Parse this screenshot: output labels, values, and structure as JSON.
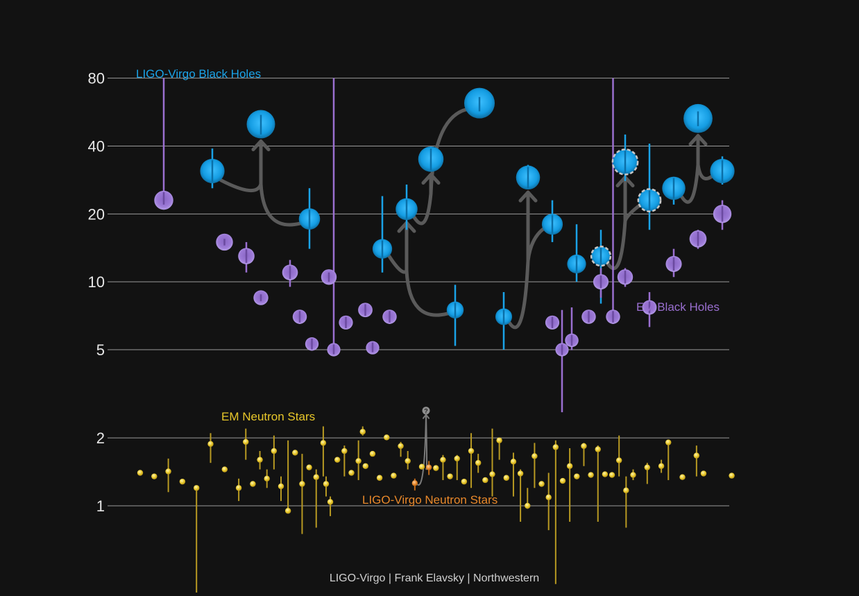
{
  "chart_data": {
    "type": "scatter",
    "yscale": "log",
    "yticks": [
      1,
      2,
      5,
      10,
      20,
      40,
      80
    ],
    "grid": true,
    "credit": "LIGO-Virgo | Frank Elavsky | Northwestern",
    "colors": {
      "ligo_bh": "#1aa3e8",
      "em_bh": "#9a6fd0",
      "em_ns": "#e8c72a",
      "ligo_ns": "#e8882a",
      "arrow": "#5a5a5a"
    },
    "series": [
      {
        "name": "LIGO-Virgo Black Holes",
        "points": [
          {
            "x": 3,
            "y": 31,
            "lo": 26,
            "hi": 39
          },
          {
            "x": 5,
            "y": 50,
            "lo": 45,
            "hi": 55
          },
          {
            "x": 7,
            "y": 19,
            "lo": 14,
            "hi": 26
          },
          {
            "x": 10,
            "y": 14,
            "lo": 11,
            "hi": 24
          },
          {
            "x": 11,
            "y": 21,
            "lo": 17,
            "hi": 27
          },
          {
            "x": 12,
            "y": 35,
            "lo": 31,
            "hi": 39
          },
          {
            "x": 13,
            "y": 7.5,
            "lo": 5.2,
            "hi": 9.7
          },
          {
            "x": 14,
            "y": 62,
            "lo": 57,
            "hi": 66
          },
          {
            "x": 15,
            "y": 7,
            "lo": 5,
            "hi": 9
          },
          {
            "x": 16,
            "y": 29,
            "lo": 26,
            "hi": 33
          },
          {
            "x": 17,
            "y": 18,
            "lo": 15,
            "hi": 23
          },
          {
            "x": 18,
            "y": 12,
            "lo": 10,
            "hi": 18
          },
          {
            "x": 19,
            "y": 13,
            "lo": 8,
            "hi": 17,
            "dashed": true
          },
          {
            "x": 20,
            "y": 34,
            "lo": 28,
            "hi": 45,
            "dashed": true
          },
          {
            "x": 21,
            "y": 23,
            "lo": 17,
            "hi": 41,
            "dashed": true
          },
          {
            "x": 22,
            "y": 26,
            "lo": 22,
            "hi": 29
          },
          {
            "x": 23,
            "y": 53,
            "lo": 49,
            "hi": 57
          },
          {
            "x": 24,
            "y": 31,
            "lo": 27,
            "hi": 36
          }
        ]
      },
      {
        "name": "EM Black Holes",
        "points": [
          {
            "x": 1,
            "y": 23,
            "lo": 22,
            "hi": 80
          },
          {
            "x": 3.5,
            "y": 15,
            "lo": 14.5,
            "hi": 15.5
          },
          {
            "x": 4.4,
            "y": 13,
            "lo": 11,
            "hi": 15
          },
          {
            "x": 5,
            "y": 8.5,
            "lo": 8.2,
            "hi": 8.8
          },
          {
            "x": 6.2,
            "y": 11,
            "lo": 9.5,
            "hi": 12.5
          },
          {
            "x": 6.6,
            "y": 7,
            "lo": 6.5,
            "hi": 7.5
          },
          {
            "x": 7.1,
            "y": 5.3,
            "lo": 5,
            "hi": 5.6
          },
          {
            "x": 7.8,
            "y": 10.5,
            "lo": 10,
            "hi": 11
          },
          {
            "x": 8,
            "y": 5,
            "lo": 4.7,
            "hi": 80
          },
          {
            "x": 8.5,
            "y": 6.6,
            "lo": 6.2,
            "hi": 7
          },
          {
            "x": 9.3,
            "y": 7.5,
            "lo": 7,
            "hi": 8
          },
          {
            "x": 9.6,
            "y": 5.1,
            "lo": 4.8,
            "hi": 5.4
          },
          {
            "x": 10.3,
            "y": 7,
            "lo": 6.5,
            "hi": 7.5
          },
          {
            "x": 17,
            "y": 6.6,
            "lo": 6.2,
            "hi": 7
          },
          {
            "x": 17.4,
            "y": 5,
            "lo": 2.6,
            "hi": 7.5
          },
          {
            "x": 17.8,
            "y": 5.5,
            "lo": 4.9,
            "hi": 7.7
          },
          {
            "x": 18.5,
            "y": 7,
            "lo": 6.6,
            "hi": 7.5
          },
          {
            "x": 19,
            "y": 10,
            "lo": 8.5,
            "hi": 11.5
          },
          {
            "x": 19.5,
            "y": 7,
            "lo": 6.5,
            "hi": 80
          },
          {
            "x": 20,
            "y": 10.5,
            "lo": 9.5,
            "hi": 11.5
          },
          {
            "x": 21,
            "y": 7.7,
            "lo": 6.3,
            "hi": 9
          },
          {
            "x": 22,
            "y": 12,
            "lo": 10.5,
            "hi": 14
          },
          {
            "x": 23,
            "y": 15.5,
            "lo": 14,
            "hi": 17
          },
          {
            "x": 24,
            "y": 20,
            "lo": 17,
            "hi": 23
          }
        ]
      },
      {
        "name": "EM Neutron Stars",
        "points": [
          {
            "x": 1.0,
            "y": 1.4
          },
          {
            "x": 1.1,
            "y": 1.35
          },
          {
            "x": 1.2,
            "y": 1.42,
            "lo": 1.15,
            "hi": 1.62
          },
          {
            "x": 1.3,
            "y": 1.28
          },
          {
            "x": 1.4,
            "y": 1.2,
            "lo": 0.4,
            "hi": 1.22
          },
          {
            "x": 1.5,
            "y": 1.88,
            "lo": 1.55,
            "hi": 2.1
          },
          {
            "x": 1.6,
            "y": 1.45
          },
          {
            "x": 1.7,
            "y": 1.2,
            "lo": 1.05,
            "hi": 1.32
          },
          {
            "x": 1.75,
            "y": 1.92,
            "lo": 1.6,
            "hi": 2.2
          },
          {
            "x": 1.8,
            "y": 1.25
          },
          {
            "x": 1.85,
            "y": 1.6,
            "lo": 1.45,
            "hi": 1.75
          },
          {
            "x": 1.9,
            "y": 1.32,
            "lo": 1.2,
            "hi": 1.45
          },
          {
            "x": 1.95,
            "y": 1.75,
            "lo": 1.45,
            "hi": 2.05
          },
          {
            "x": 2.0,
            "y": 1.22,
            "lo": 1.05,
            "hi": 1.35
          },
          {
            "x": 2.05,
            "y": 0.95,
            "lo": 0.93,
            "hi": 1.95
          },
          {
            "x": 2.1,
            "y": 1.72
          },
          {
            "x": 2.15,
            "y": 1.25,
            "lo": 0.75,
            "hi": 1.7
          },
          {
            "x": 2.2,
            "y": 1.48
          },
          {
            "x": 2.25,
            "y": 1.34,
            "lo": 0.8,
            "hi": 1.45
          },
          {
            "x": 2.3,
            "y": 1.9,
            "lo": 1.35,
            "hi": 2.25
          },
          {
            "x": 2.32,
            "y": 1.25,
            "lo": 1.1,
            "hi": 1.35
          },
          {
            "x": 2.35,
            "y": 1.04,
            "lo": 0.9,
            "hi": 1.1
          },
          {
            "x": 2.4,
            "y": 1.6
          },
          {
            "x": 2.45,
            "y": 1.75,
            "lo": 1.35,
            "hi": 1.85
          },
          {
            "x": 2.5,
            "y": 1.4
          },
          {
            "x": 2.55,
            "y": 1.58,
            "lo": 1.3,
            "hi": 1.95
          },
          {
            "x": 2.58,
            "y": 2.13,
            "lo": 2.05,
            "hi": 2.25
          },
          {
            "x": 2.6,
            "y": 1.5
          },
          {
            "x": 2.65,
            "y": 1.7
          },
          {
            "x": 2.7,
            "y": 1.33
          },
          {
            "x": 2.75,
            "y": 2.01
          },
          {
            "x": 2.8,
            "y": 1.36
          },
          {
            "x": 2.85,
            "y": 1.84,
            "lo": 1.65,
            "hi": 1.92
          },
          {
            "x": 2.9,
            "y": 1.58,
            "lo": 1.45,
            "hi": 1.75
          },
          {
            "x": 3.0,
            "y": 1.49
          },
          {
            "x": 3.1,
            "y": 1.47
          },
          {
            "x": 3.15,
            "y": 1.6,
            "lo": 1.3,
            "hi": 1.68
          },
          {
            "x": 3.2,
            "y": 1.35
          },
          {
            "x": 3.25,
            "y": 1.62,
            "lo": 1.3,
            "hi": 1.68
          },
          {
            "x": 3.3,
            "y": 1.28
          },
          {
            "x": 3.35,
            "y": 1.75,
            "lo": 1.2,
            "hi": 2.1
          },
          {
            "x": 3.4,
            "y": 1.55,
            "lo": 1.4,
            "hi": 1.7
          },
          {
            "x": 3.45,
            "y": 1.3
          },
          {
            "x": 3.5,
            "y": 1.38,
            "lo": 1.1,
            "hi": 2.2
          },
          {
            "x": 3.55,
            "y": 1.95,
            "lo": 1.6,
            "hi": 1.98
          },
          {
            "x": 3.6,
            "y": 1.33
          },
          {
            "x": 3.65,
            "y": 1.57,
            "lo": 1.1,
            "hi": 1.72
          },
          {
            "x": 3.7,
            "y": 1.39,
            "lo": 0.85,
            "hi": 1.45
          },
          {
            "x": 3.75,
            "y": 1.0,
            "lo": 0.97,
            "hi": 1.2
          },
          {
            "x": 3.8,
            "y": 1.66,
            "lo": 1.2,
            "hi": 1.9
          },
          {
            "x": 3.85,
            "y": 1.25
          },
          {
            "x": 3.9,
            "y": 1.09,
            "lo": 0.78,
            "hi": 1.4
          },
          {
            "x": 3.95,
            "y": 1.82,
            "lo": 0.45,
            "hi": 1.95
          },
          {
            "x": 4.0,
            "y": 1.29
          },
          {
            "x": 4.05,
            "y": 1.5,
            "lo": 0.85,
            "hi": 1.8
          },
          {
            "x": 4.1,
            "y": 1.35
          },
          {
            "x": 4.15,
            "y": 1.84,
            "lo": 1.5,
            "hi": 1.9
          },
          {
            "x": 4.2,
            "y": 1.37
          },
          {
            "x": 4.25,
            "y": 1.78,
            "lo": 0.85,
            "hi": 1.85
          },
          {
            "x": 4.3,
            "y": 1.38
          },
          {
            "x": 4.35,
            "y": 1.37
          },
          {
            "x": 4.4,
            "y": 1.59,
            "lo": 1.35,
            "hi": 2.05
          },
          {
            "x": 4.45,
            "y": 1.17,
            "lo": 0.8,
            "hi": 1.35
          },
          {
            "x": 4.5,
            "y": 1.37,
            "lo": 1.3,
            "hi": 1.45
          },
          {
            "x": 4.6,
            "y": 1.48,
            "lo": 1.25,
            "hi": 1.55
          },
          {
            "x": 4.7,
            "y": 1.5,
            "lo": 1.4,
            "hi": 1.6
          },
          {
            "x": 4.75,
            "y": 1.91,
            "lo": 1.3,
            "hi": 1.95
          },
          {
            "x": 4.85,
            "y": 1.34
          },
          {
            "x": 4.95,
            "y": 1.67,
            "lo": 1.35,
            "hi": 1.85
          },
          {
            "x": 5.0,
            "y": 1.39
          },
          {
            "x": 5.2,
            "y": 1.36
          }
        ]
      },
      {
        "name": "LIGO-Virgo Neutron Stars",
        "points": [
          {
            "x": 2.95,
            "y": 1.26,
            "lo": 1.17,
            "hi": 1.32
          },
          {
            "x": 3.05,
            "y": 1.48,
            "lo": 1.37,
            "hi": 1.58
          }
        ],
        "remnant": {
          "y": 2.7,
          "label": "?"
        }
      }
    ]
  }
}
